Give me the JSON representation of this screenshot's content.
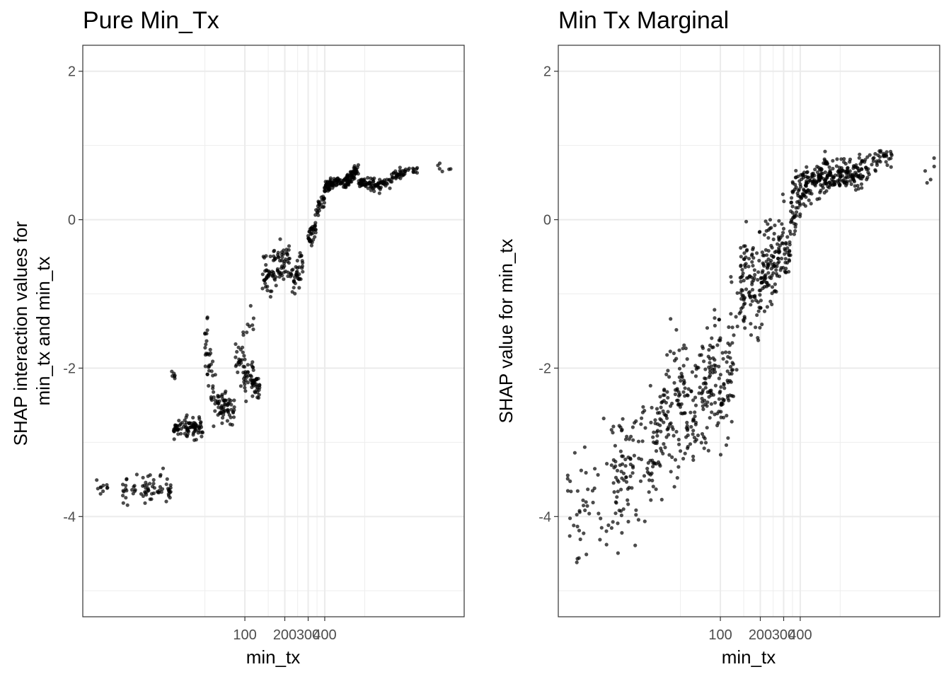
{
  "chart_data": [
    {
      "type": "scatter",
      "title": "Pure Min_Tx",
      "xlabel": "min_tx",
      "ylabel_lines": [
        "SHAP interaction values for",
        "min_tx and min_tx"
      ],
      "x_scale": "log10",
      "xlim": [
        6,
        4500
      ],
      "x_ticks": [
        100,
        200,
        300,
        400
      ],
      "x_tick_labels": [
        "100",
        "200",
        "300",
        "400"
      ],
      "ylim": [
        -5.35,
        2.35
      ],
      "y_ticks": [
        -4,
        -2,
        0,
        2
      ],
      "y_tick_labels": [
        "-4",
        "-2",
        "0",
        "2"
      ],
      "grid": true,
      "point_color": "#000000",
      "segments": [
        {
          "x0": 7.5,
          "x1": 10,
          "y0": -3.62,
          "y1": -3.62,
          "jitter": 0.05,
          "n": 10
        },
        {
          "x0": 12,
          "x1": 28,
          "y0": -3.62,
          "y1": -3.62,
          "jitter": 0.09,
          "n": 70
        },
        {
          "x0": 27,
          "x1": 30,
          "y0": -2.12,
          "y1": -2.12,
          "jitter": 0.06,
          "n": 6
        },
        {
          "x0": 29,
          "x1": 48,
          "y0": -2.8,
          "y1": -2.8,
          "jitter": 0.07,
          "n": 85
        },
        {
          "x0": 50,
          "x1": 60,
          "y0": -1.6,
          "y1": -2.4,
          "jitter": 0.25,
          "n": 40
        },
        {
          "x0": 62,
          "x1": 84,
          "y0": -2.45,
          "y1": -2.55,
          "jitter": 0.12,
          "n": 60
        },
        {
          "x0": 85,
          "x1": 108,
          "y0": -1.85,
          "y1": -2.15,
          "jitter": 0.15,
          "n": 40
        },
        {
          "x0": 95,
          "x1": 118,
          "y0": -1.5,
          "y1": -1.4,
          "jitter": 0.15,
          "n": 10
        },
        {
          "x0": 110,
          "x1": 130,
          "y0": -2.1,
          "y1": -2.3,
          "jitter": 0.1,
          "n": 40
        },
        {
          "x0": 135,
          "x1": 220,
          "y0": -0.8,
          "y1": -0.5,
          "jitter": 0.14,
          "n": 90
        },
        {
          "x0": 220,
          "x1": 280,
          "y0": -0.8,
          "y1": -0.6,
          "jitter": 0.12,
          "n": 40
        },
        {
          "x0": 300,
          "x1": 350,
          "y0": -0.25,
          "y1": -0.05,
          "jitter": 0.08,
          "n": 35
        },
        {
          "x0": 350,
          "x1": 400,
          "y0": 0.1,
          "y1": 0.3,
          "jitter": 0.07,
          "n": 25
        },
        {
          "x0": 400,
          "x1": 460,
          "y0": 0.45,
          "y1": 0.5,
          "jitter": 0.05,
          "n": 40
        },
        {
          "x0": 460,
          "x1": 620,
          "y0": 0.5,
          "y1": 0.52,
          "jitter": 0.04,
          "n": 60
        },
        {
          "x0": 620,
          "x1": 720,
          "y0": 0.55,
          "y1": 0.7,
          "jitter": 0.04,
          "n": 40
        },
        {
          "x0": 720,
          "x1": 1050,
          "y0": 0.5,
          "y1": 0.45,
          "jitter": 0.04,
          "n": 70
        },
        {
          "x0": 1050,
          "x1": 1300,
          "y0": 0.48,
          "y1": 0.55,
          "jitter": 0.04,
          "n": 25
        },
        {
          "x0": 1300,
          "x1": 2000,
          "y0": 0.6,
          "y1": 0.68,
          "jitter": 0.03,
          "n": 40
        },
        {
          "x0": 2500,
          "x1": 4000,
          "y0": 0.68,
          "y1": 0.7,
          "jitter": 0.05,
          "n": 6
        }
      ]
    },
    {
      "type": "scatter",
      "title": "Min Tx Marginal",
      "xlabel": "min_tx",
      "ylabel_lines": [
        "SHAP value for min_tx"
      ],
      "x_scale": "log10",
      "xlim": [
        6,
        4500
      ],
      "x_ticks": [
        100,
        200,
        300,
        400
      ],
      "x_tick_labels": [
        "100",
        "200",
        "300",
        "400"
      ],
      "ylim": [
        -5.35,
        2.35
      ],
      "y_ticks": [
        -4,
        -2,
        0,
        2
      ],
      "y_tick_labels": [
        "-4",
        "-2",
        "0",
        "2"
      ],
      "grid": true,
      "point_color": "#000000",
      "segments": [
        {
          "x0": 7,
          "x1": 15,
          "y0": -3.8,
          "y1": -3.6,
          "jitter": 0.4,
          "n": 45
        },
        {
          "x0": 15,
          "x1": 30,
          "y0": -3.6,
          "y1": -3.0,
          "jitter": 0.45,
          "n": 100
        },
        {
          "x0": 30,
          "x1": 55,
          "y0": -3.0,
          "y1": -2.4,
          "jitter": 0.45,
          "n": 130
        },
        {
          "x0": 55,
          "x1": 100,
          "y0": -2.6,
          "y1": -2.0,
          "jitter": 0.4,
          "n": 130
        },
        {
          "x0": 100,
          "x1": 140,
          "y0": -2.3,
          "y1": -1.6,
          "jitter": 0.45,
          "n": 60
        },
        {
          "x0": 140,
          "x1": 240,
          "y0": -0.95,
          "y1": -0.7,
          "jitter": 0.3,
          "n": 150
        },
        {
          "x0": 240,
          "x1": 340,
          "y0": -0.7,
          "y1": -0.2,
          "jitter": 0.28,
          "n": 90
        },
        {
          "x0": 340,
          "x1": 420,
          "y0": 0.1,
          "y1": 0.45,
          "jitter": 0.2,
          "n": 55
        },
        {
          "x0": 420,
          "x1": 650,
          "y0": 0.45,
          "y1": 0.6,
          "jitter": 0.13,
          "n": 110
        },
        {
          "x0": 650,
          "x1": 1200,
          "y0": 0.55,
          "y1": 0.65,
          "jitter": 0.12,
          "n": 130
        },
        {
          "x0": 1200,
          "x1": 2000,
          "y0": 0.7,
          "y1": 0.85,
          "jitter": 0.07,
          "n": 45
        },
        {
          "x0": 3000,
          "x1": 4200,
          "y0": 0.65,
          "y1": 0.65,
          "jitter": 0.15,
          "n": 5
        }
      ]
    }
  ]
}
